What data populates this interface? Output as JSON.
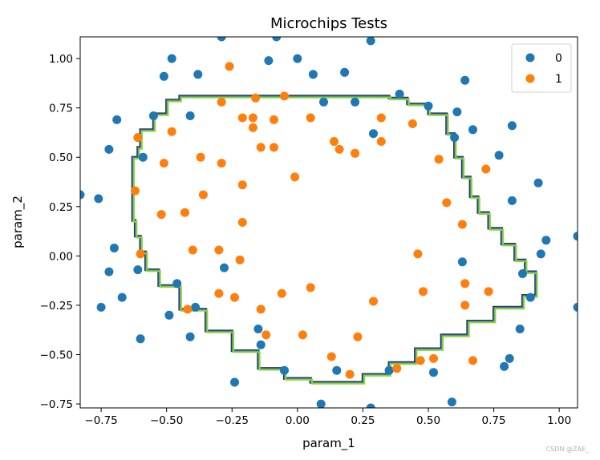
{
  "chart_data": {
    "type": "scatter",
    "title": "Microchips Tests",
    "xlabel": "param_1",
    "ylabel": "param_2",
    "xlim": [
      -0.83,
      1.07
    ],
    "ylim": [
      -0.77,
      1.11
    ],
    "xticks": [
      -0.75,
      -0.5,
      -0.25,
      0.0,
      0.25,
      0.5,
      0.75,
      1.0
    ],
    "xtick_labels": [
      "−0.75",
      "−0.50",
      "−0.25",
      "0.00",
      "0.25",
      "0.50",
      "0.75",
      "1.00"
    ],
    "yticks": [
      -0.75,
      -0.5,
      -0.25,
      0.0,
      0.25,
      0.5,
      0.75,
      1.0
    ],
    "ytick_labels": [
      "−0.75",
      "−0.50",
      "−0.25",
      "0.00",
      "0.25",
      "0.50",
      "0.75",
      "1.00"
    ],
    "grid": false,
    "legend_position": "top-right",
    "series": [
      {
        "name": "0",
        "color": "#1f77b4",
        "points": [
          [
            -0.29,
            1.11
          ],
          [
            -0.08,
            1.11
          ],
          [
            0.28,
            1.09
          ],
          [
            -0.48,
            1.0
          ],
          [
            -0.11,
            0.99
          ],
          [
            0.0,
            1.0
          ],
          [
            0.18,
            0.93
          ],
          [
            0.06,
            0.92
          ],
          [
            -0.38,
            0.92
          ],
          [
            -0.51,
            0.91
          ],
          [
            0.39,
            0.82
          ],
          [
            0.64,
            0.89
          ],
          [
            0.1,
            0.78
          ],
          [
            0.22,
            0.78
          ],
          [
            0.5,
            0.76
          ],
          [
            0.61,
            0.73
          ],
          [
            -0.55,
            0.71
          ],
          [
            -0.69,
            0.69
          ],
          [
            -0.41,
            0.71
          ],
          [
            0.82,
            0.66
          ],
          [
            0.67,
            0.64
          ],
          [
            0.29,
            0.62
          ],
          [
            0.6,
            0.6
          ],
          [
            -0.72,
            0.54
          ],
          [
            -0.59,
            0.5
          ],
          [
            0.77,
            0.51
          ],
          [
            -0.83,
            0.31
          ],
          [
            -0.76,
            0.29
          ],
          [
            0.92,
            0.37
          ],
          [
            0.82,
            0.28
          ],
          [
            0.95,
            0.08
          ],
          [
            1.07,
            0.1
          ],
          [
            -0.7,
            0.04
          ],
          [
            0.93,
            0.01
          ],
          [
            0.63,
            -0.03
          ],
          [
            -0.61,
            -0.07
          ],
          [
            -0.28,
            -0.06
          ],
          [
            -0.72,
            -0.08
          ],
          [
            0.86,
            -0.09
          ],
          [
            -0.46,
            -0.14
          ],
          [
            -0.67,
            -0.21
          ],
          [
            0.89,
            -0.21
          ],
          [
            -0.75,
            -0.26
          ],
          [
            -0.39,
            -0.26
          ],
          [
            1.07,
            -0.26
          ],
          [
            -0.49,
            -0.3
          ],
          [
            -0.15,
            -0.37
          ],
          [
            0.85,
            -0.37
          ],
          [
            -0.6,
            -0.42
          ],
          [
            -0.41,
            -0.41
          ],
          [
            -0.14,
            -0.45
          ],
          [
            0.81,
            -0.52
          ],
          [
            0.79,
            -0.56
          ],
          [
            -0.05,
            -0.58
          ],
          [
            0.15,
            -0.58
          ],
          [
            0.35,
            -0.58
          ],
          [
            0.52,
            -0.59
          ],
          [
            -0.24,
            -0.64
          ],
          [
            0.59,
            -0.74
          ],
          [
            0.09,
            -0.75
          ],
          [
            0.28,
            -0.77
          ]
        ]
      },
      {
        "name": "1",
        "color": "#ff7f0e",
        "points": [
          [
            -0.26,
            0.96
          ],
          [
            -0.16,
            0.8
          ],
          [
            -0.05,
            0.81
          ],
          [
            -0.29,
            0.78
          ],
          [
            -0.21,
            0.7
          ],
          [
            -0.17,
            0.7
          ],
          [
            -0.09,
            0.69
          ],
          [
            0.05,
            0.7
          ],
          [
            0.32,
            0.7
          ],
          [
            0.44,
            0.67
          ],
          [
            -0.17,
            0.65
          ],
          [
            -0.48,
            0.63
          ],
          [
            -0.61,
            0.6
          ],
          [
            0.14,
            0.58
          ],
          [
            0.32,
            0.58
          ],
          [
            -0.14,
            0.55
          ],
          [
            -0.09,
            0.55
          ],
          [
            0.16,
            0.54
          ],
          [
            0.22,
            0.52
          ],
          [
            -0.37,
            0.5
          ],
          [
            -0.29,
            0.47
          ],
          [
            -0.51,
            0.47
          ],
          [
            0.54,
            0.49
          ],
          [
            0.72,
            0.44
          ],
          [
            -0.01,
            0.4
          ],
          [
            -0.21,
            0.36
          ],
          [
            -0.62,
            0.33
          ],
          [
            -0.36,
            0.31
          ],
          [
            0.57,
            0.27
          ],
          [
            -0.52,
            0.21
          ],
          [
            -0.43,
            0.22
          ],
          [
            0.63,
            0.16
          ],
          [
            -0.21,
            0.17
          ],
          [
            -0.6,
            0.01
          ],
          [
            -0.4,
            0.03
          ],
          [
            -0.3,
            0.03
          ],
          [
            -0.22,
            -0.02
          ],
          [
            0.46,
            0.01
          ],
          [
            -0.3,
            -0.19
          ],
          [
            0.05,
            -0.16
          ],
          [
            -0.06,
            -0.19
          ],
          [
            0.64,
            -0.14
          ],
          [
            0.73,
            -0.18
          ],
          [
            0.48,
            -0.18
          ],
          [
            -0.24,
            -0.21
          ],
          [
            -0.14,
            -0.27
          ],
          [
            0.29,
            -0.23
          ],
          [
            -0.42,
            -0.27
          ],
          [
            0.64,
            -0.25
          ],
          [
            -0.12,
            -0.4
          ],
          [
            0.02,
            -0.4
          ],
          [
            0.23,
            -0.41
          ],
          [
            0.13,
            -0.51
          ],
          [
            0.47,
            -0.53
          ],
          [
            0.52,
            -0.52
          ],
          [
            0.67,
            -0.53
          ],
          [
            0.38,
            -0.57
          ],
          [
            0.2,
            -0.6
          ]
        ]
      }
    ],
    "decision_boundary": {
      "colors": [
        "#2f2d6e",
        "#3a8a8a",
        "#8fd43b"
      ],
      "points": [
        [
          -0.63,
          0.34
        ],
        [
          -0.63,
          0.5
        ],
        [
          -0.61,
          0.55
        ],
        [
          -0.6,
          0.64
        ],
        [
          -0.55,
          0.72
        ],
        [
          -0.5,
          0.79
        ],
        [
          -0.45,
          0.81
        ],
        [
          -0.3,
          0.81
        ],
        [
          -0.1,
          0.81
        ],
        [
          0.1,
          0.81
        ],
        [
          0.3,
          0.81
        ],
        [
          0.35,
          0.8
        ],
        [
          0.42,
          0.77
        ],
        [
          0.5,
          0.72
        ],
        [
          0.57,
          0.62
        ],
        [
          0.6,
          0.5
        ],
        [
          0.63,
          0.4
        ],
        [
          0.66,
          0.3
        ],
        [
          0.69,
          0.22
        ],
        [
          0.73,
          0.14
        ],
        [
          0.78,
          0.06
        ],
        [
          0.83,
          -0.02
        ],
        [
          0.87,
          -0.08
        ],
        [
          0.91,
          -0.2
        ],
        [
          0.86,
          -0.26
        ],
        [
          0.75,
          -0.33
        ],
        [
          0.65,
          -0.4
        ],
        [
          0.55,
          -0.47
        ],
        [
          0.45,
          -0.54
        ],
        [
          0.35,
          -0.6
        ],
        [
          0.25,
          -0.64
        ],
        [
          0.15,
          -0.64
        ],
        [
          0.05,
          -0.62
        ],
        [
          -0.05,
          -0.57
        ],
        [
          -0.15,
          -0.48
        ],
        [
          -0.25,
          -0.38
        ],
        [
          -0.35,
          -0.27
        ],
        [
          -0.45,
          -0.15
        ],
        [
          -0.53,
          -0.07
        ],
        [
          -0.58,
          0.02
        ],
        [
          -0.6,
          0.1
        ],
        [
          -0.62,
          0.18
        ],
        [
          -0.63,
          0.26
        ],
        [
          -0.63,
          0.34
        ]
      ]
    },
    "watermark": "CSDN @ZAE_"
  }
}
